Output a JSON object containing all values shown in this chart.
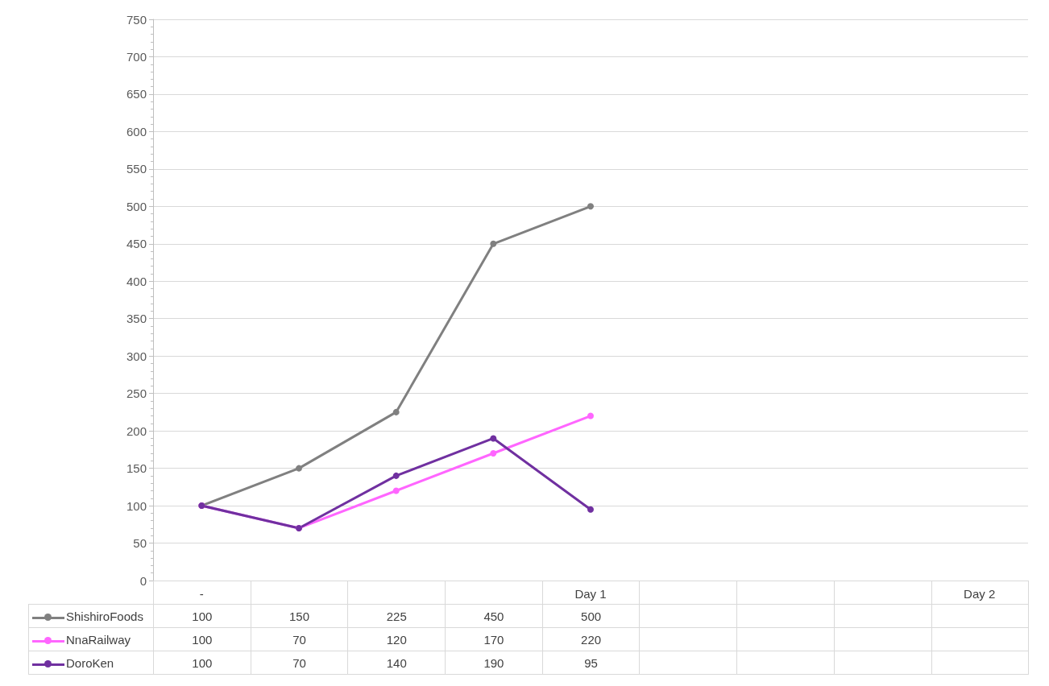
{
  "chart_data": {
    "type": "line",
    "categories": [
      "-",
      null,
      null,
      null,
      "Day 1",
      null,
      null,
      null,
      "Day 2"
    ],
    "series": [
      {
        "name": "ShishiroFoods",
        "color": "#808080",
        "values": [
          100,
          150,
          225,
          450,
          500,
          null,
          null,
          null,
          null
        ]
      },
      {
        "name": "NnaRailway",
        "color": "#ff66ff",
        "values": [
          100,
          70,
          120,
          170,
          220,
          null,
          null,
          null,
          null
        ]
      },
      {
        "name": "DoroKen",
        "color": "#7030a0",
        "values": [
          100,
          70,
          140,
          190,
          95,
          null,
          null,
          null,
          null
        ]
      }
    ],
    "ylim": [
      0,
      750
    ],
    "yticks": [
      0,
      50,
      100,
      150,
      200,
      250,
      300,
      350,
      400,
      450,
      500,
      550,
      600,
      650,
      700,
      750
    ],
    "grid": "y",
    "marker": "circle",
    "line_style": "solid",
    "data_labels": true,
    "legend": "bottom"
  }
}
